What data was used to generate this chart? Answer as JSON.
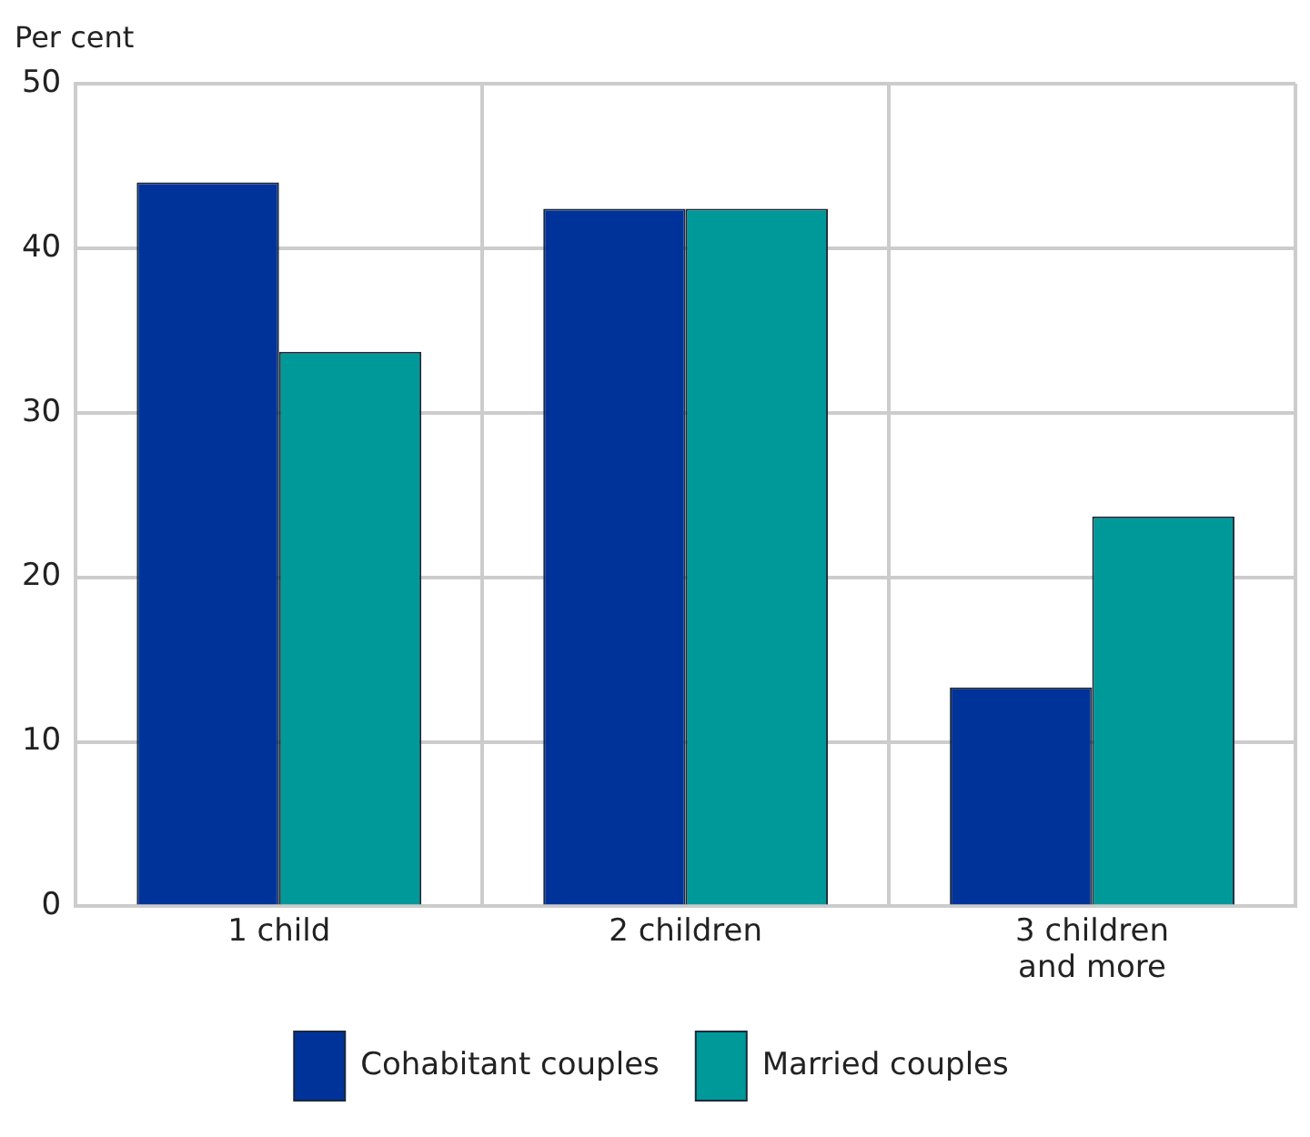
{
  "chart_data": {
    "type": "bar",
    "ylabel": "Per cent",
    "categories": [
      "1 child",
      "2 children",
      "3 children and more"
    ],
    "series": [
      {
        "name": "Cohabitant couples",
        "color": "#003399",
        "values": [
          44.0,
          42.4,
          13.3
        ]
      },
      {
        "name": "Married couples",
        "color": "#009999",
        "values": [
          33.7,
          42.4,
          23.7
        ]
      }
    ],
    "ylim": [
      0,
      50
    ],
    "yticks": [
      0,
      10,
      20,
      30,
      40,
      50
    ],
    "grid": true,
    "legend": "bottom"
  }
}
